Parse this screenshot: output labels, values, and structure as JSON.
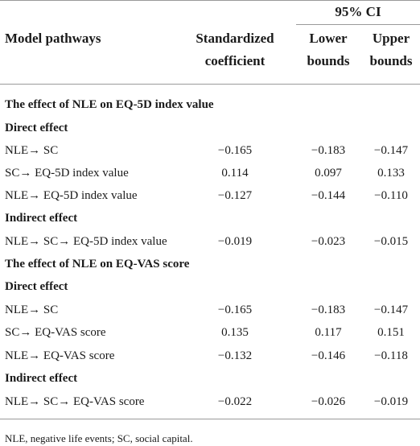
{
  "header": {
    "ci_group": "95% CI",
    "col_pathway": "Model pathways",
    "col_coef_line1": "Standardized",
    "col_coef_line2": "coefficient",
    "col_lower_line1": "Lower",
    "col_lower_line2": "bounds",
    "col_upper_line1": "Upper",
    "col_upper_line2": "bounds"
  },
  "sections": [
    {
      "title": "The effect of NLE on EQ-5D index value",
      "groups": [
        {
          "label": "Direct effect",
          "rows": [
            {
              "pathway": "NLE→  SC",
              "coef": "−0.165",
              "lower": "−0.183",
              "upper": "−0.147"
            },
            {
              "pathway": "SC→  EQ-5D index value",
              "coef": "0.114",
              "lower": "0.097",
              "upper": "0.133"
            },
            {
              "pathway": "NLE→  EQ-5D index value",
              "coef": "−0.127",
              "lower": "−0.144",
              "upper": "−0.110"
            }
          ]
        },
        {
          "label": "Indirect effect",
          "rows": [
            {
              "pathway": "NLE→  SC→  EQ-5D index value",
              "coef": "−0.019",
              "lower": "−0.023",
              "upper": "−0.015"
            }
          ]
        }
      ]
    },
    {
      "title": "The effect of NLE on EQ-VAS score",
      "groups": [
        {
          "label": "Direct effect",
          "rows": [
            {
              "pathway": "NLE→  SC",
              "coef": "−0.165",
              "lower": "−0.183",
              "upper": "−0.147"
            },
            {
              "pathway": "SC→  EQ-VAS score",
              "coef": "0.135",
              "lower": "0.117",
              "upper": "0.151"
            },
            {
              "pathway": "NLE→  EQ-VAS score",
              "coef": "−0.132",
              "lower": "−0.146",
              "upper": "−0.118"
            }
          ]
        },
        {
          "label": "Indirect effect",
          "rows": [
            {
              "pathway": "NLE→  SC→  EQ-VAS score",
              "coef": "−0.022",
              "lower": "−0.026",
              "upper": "−0.019"
            }
          ]
        }
      ]
    }
  ],
  "footnote": "NLE, negative life events; SC, social capital."
}
